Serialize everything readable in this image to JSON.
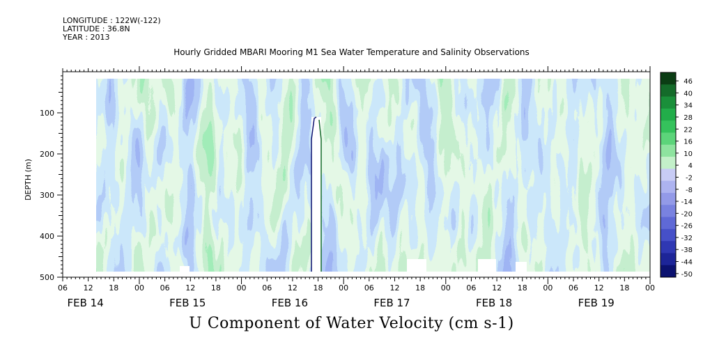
{
  "header": {
    "longitude": "LONGITUDE : 122W(-122)",
    "latitude": "LATITUDE : 36.8N",
    "year": "YEAR : 2013"
  },
  "chart_data": {
    "type": "heatmap",
    "title": "Hourly Gridded MBARI Mooring M1 Sea Water Temperature and Salinity Observations",
    "bottom_title": "U Component of Water Velocity (cm s-1)",
    "ylabel": "DEPTH (m)",
    "ylim": [
      500,
      0
    ],
    "y_ticks": [
      "100",
      "200",
      "300",
      "400",
      "500"
    ],
    "x_hour_ticks": [
      "06",
      "12",
      "18",
      "00",
      "06",
      "12",
      "18",
      "00",
      "06",
      "12",
      "18",
      "00",
      "06",
      "12",
      "18",
      "00",
      "06",
      "12",
      "18",
      "00",
      "06",
      "12",
      "18",
      "00"
    ],
    "x_day_labels": [
      "FEB 14",
      "FEB 15",
      "FEB 16",
      "FEB 17",
      "FEB 18",
      "FEB 19"
    ],
    "colorbar_levels": [
      "46",
      "40",
      "34",
      "28",
      "22",
      "16",
      "10",
      "4",
      "-2",
      "-8",
      "-14",
      "-20",
      "-26",
      "-32",
      "-38",
      "-44",
      "-50"
    ],
    "colorbar_colors": [
      "#0b3d14",
      "#146b2a",
      "#1a8f3a",
      "#22ad4a",
      "#35c25c",
      "#5cd47a",
      "#8ee39f",
      "#c3f0c9",
      "#c8ccf5",
      "#adb3f0",
      "#939ae8",
      "#7982e0",
      "#5f69d6",
      "#4650c8",
      "#2f38b3",
      "#1d2598",
      "#0c1270"
    ],
    "missing_data_note": "white gap near FEB 16 18 at depths 160-490 m"
  }
}
